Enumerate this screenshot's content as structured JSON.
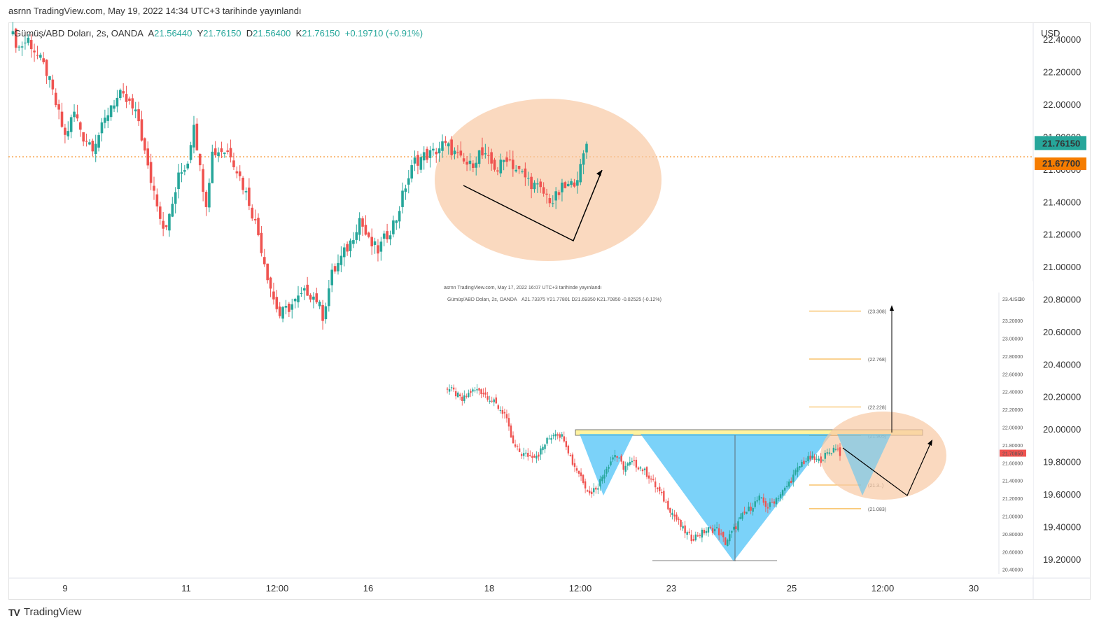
{
  "header": {
    "published": "asrnn TradingView.com, May 19, 2022 14:34 UTC+3 tarihinde yayınlandı"
  },
  "legend": {
    "symbol": "Gümüş/ABD Doları, 2s, OANDA",
    "o_label": "A",
    "o": "21.56440",
    "h_label": "Y",
    "h": "21.76150",
    "l_label": "D",
    "l": "21.56400",
    "c_label": "K",
    "c": "21.76150",
    "change": "+0.19710 (+0.91%)"
  },
  "footer": {
    "brand": "TradingView",
    "logo": "TV"
  },
  "colors": {
    "up": "#26a69a",
    "down": "#ef5350",
    "accent_orange": "#f57c00",
    "price_badge": "#26a69a",
    "ellipse": "#f8c9a4"
  },
  "chart_data": {
    "type": "candlestick",
    "currency": "USD",
    "yticks": [
      "22.40000",
      "22.20000",
      "22.00000",
      "21.80000",
      "21.60000",
      "21.40000",
      "21.20000",
      "21.00000",
      "20.80000",
      "20.60000",
      "20.40000",
      "20.20000",
      "20.00000",
      "19.80000",
      "19.60000",
      "19.40000",
      "19.20000"
    ],
    "ytick_values": [
      22.4,
      22.2,
      22.0,
      21.8,
      21.6,
      21.4,
      21.2,
      21.0,
      20.8,
      20.6,
      20.4,
      20.2,
      20.0,
      19.8,
      19.6,
      19.4,
      19.2
    ],
    "ylim": [
      19.1,
      22.5
    ],
    "xticks": [
      "9",
      "11",
      "12:00",
      "16",
      "18",
      "12:00",
      "23",
      "25",
      "12:00",
      "30"
    ],
    "last_price": "21.76150",
    "last_price_value": 21.7615,
    "prev_level": "21.67700",
    "prev_level_value": 21.677,
    "close_path": [
      [
        0,
        22.45
      ],
      [
        3,
        22.35
      ],
      [
        6,
        22.4
      ],
      [
        9,
        22.3
      ],
      [
        12,
        22.2
      ],
      [
        15,
        22.0
      ],
      [
        18,
        21.8
      ],
      [
        21,
        21.95
      ],
      [
        24,
        21.8
      ],
      [
        27,
        21.75
      ],
      [
        30,
        21.85
      ],
      [
        33,
        22.0
      ],
      [
        36,
        22.05
      ],
      [
        39,
        22.0
      ],
      [
        42,
        21.9
      ],
      [
        45,
        21.6
      ],
      [
        48,
        21.4
      ],
      [
        50,
        21.25
      ],
      [
        52,
        21.3
      ],
      [
        55,
        21.55
      ],
      [
        58,
        21.65
      ],
      [
        60,
        21.9
      ],
      [
        62,
        21.6
      ],
      [
        64,
        21.4
      ],
      [
        66,
        21.7
      ],
      [
        69,
        21.72
      ],
      [
        72,
        21.7
      ],
      [
        75,
        21.55
      ],
      [
        78,
        21.4
      ],
      [
        81,
        21.2
      ],
      [
        84,
        20.95
      ],
      [
        86,
        20.8
      ],
      [
        88,
        20.7
      ],
      [
        91,
        20.75
      ],
      [
        94,
        20.8
      ],
      [
        97,
        20.85
      ],
      [
        100,
        20.8
      ],
      [
        102,
        20.7
      ],
      [
        105,
        20.95
      ],
      [
        108,
        21.05
      ],
      [
        111,
        21.15
      ],
      [
        114,
        21.3
      ],
      [
        117,
        21.15
      ],
      [
        120,
        21.1
      ],
      [
        123,
        21.2
      ],
      [
        126,
        21.3
      ],
      [
        129,
        21.5
      ],
      [
        132,
        21.65
      ],
      [
        135,
        21.68
      ],
      [
        138,
        21.7
      ],
      [
        141,
        21.75
      ],
      [
        144,
        21.72
      ],
      [
        147,
        21.65
      ],
      [
        150,
        21.62
      ],
      [
        153,
        21.7
      ],
      [
        156,
        21.65
      ],
      [
        159,
        21.6
      ],
      [
        162,
        21.68
      ],
      [
        165,
        21.6
      ],
      [
        168,
        21.55
      ],
      [
        171,
        21.5
      ],
      [
        174,
        21.45
      ],
      [
        177,
        21.4
      ],
      [
        180,
        21.48
      ],
      [
        183,
        21.5
      ],
      [
        186,
        21.6
      ],
      [
        188,
        21.76
      ]
    ],
    "inset": {
      "published": "asrnn TradingView.com, May 17, 2022 16:07 UTC+3 tarihinde yayınlandı",
      "legend": "Gümüş/ABD Doları, 2s, OANDA",
      "values": "A21.73375  Y21.77801  D21.69350  K21.70850  -0.02525 (-0.12%)",
      "currency": "USD",
      "yticks": [
        "23.20000",
        "23.00000",
        "22.80000",
        "22.60000",
        "22.40000",
        "22.20000",
        "22.00000",
        "21.80000",
        "21.60000",
        "21.40000",
        "21.20000",
        "21.00000",
        "20.80000",
        "20.60000",
        "20.40000"
      ],
      "top_tick": "23.4",
      "top_tick_suffix": "30",
      "price_badge": "21.70850",
      "fib_labels": [
        "(23.308)",
        "(22.768)",
        "(22.228)",
        "(21.905)",
        "(21.3..)",
        "(21.083)"
      ],
      "ylim": [
        20.35,
        23.5
      ],
      "close_path": [
        [
          0,
          22.45
        ],
        [
          4,
          22.4
        ],
        [
          8,
          22.3
        ],
        [
          12,
          22.4
        ],
        [
          16,
          22.42
        ],
        [
          20,
          22.35
        ],
        [
          24,
          22.25
        ],
        [
          28,
          22.15
        ],
        [
          32,
          21.8
        ],
        [
          36,
          21.7
        ],
        [
          40,
          21.68
        ],
        [
          44,
          21.7
        ],
        [
          48,
          21.85
        ],
        [
          52,
          21.95
        ],
        [
          56,
          21.88
        ],
        [
          60,
          21.6
        ],
        [
          64,
          21.45
        ],
        [
          68,
          21.25
        ],
        [
          72,
          21.35
        ],
        [
          76,
          21.55
        ],
        [
          80,
          21.7
        ],
        [
          84,
          21.55
        ],
        [
          88,
          21.6
        ],
        [
          92,
          21.55
        ],
        [
          96,
          21.45
        ],
        [
          100,
          21.3
        ],
        [
          104,
          21.15
        ],
        [
          108,
          21.0
        ],
        [
          112,
          20.85
        ],
        [
          116,
          20.75
        ],
        [
          120,
          20.8
        ],
        [
          124,
          20.85
        ],
        [
          128,
          20.85
        ],
        [
          132,
          20.7
        ],
        [
          136,
          20.85
        ],
        [
          140,
          21.0
        ],
        [
          144,
          21.1
        ],
        [
          148,
          21.2
        ],
        [
          152,
          21.1
        ],
        [
          156,
          21.2
        ],
        [
          160,
          21.3
        ],
        [
          164,
          21.45
        ],
        [
          168,
          21.6
        ],
        [
          172,
          21.65
        ],
        [
          176,
          21.62
        ],
        [
          180,
          21.7
        ],
        [
          184,
          21.78
        ],
        [
          186,
          21.71
        ]
      ]
    }
  }
}
